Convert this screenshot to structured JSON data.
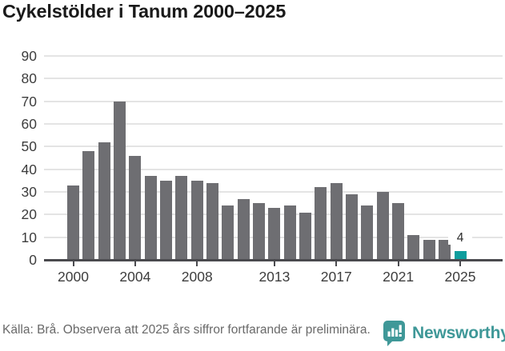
{
  "title": "Cykelstölder i Tanum 2000–2025",
  "footer": {
    "source_text": "Källa: Brå. Observera att 2025 års siffror fortfarande är preliminära.",
    "brand_name": "Newsworthy"
  },
  "colors": {
    "bar": "#6e6e72",
    "highlight": "#0d9d9d",
    "grid": "#e4e4e4",
    "axis": "#4a4a4e",
    "brand_teal": "#3f9898"
  },
  "chart_data": {
    "type": "bar",
    "title": "Cykelstölder i Tanum 2000–2025",
    "categories": [
      "2000",
      "2001",
      "2002",
      "2003",
      "2004",
      "2005",
      "2006",
      "2007",
      "2008",
      "2009",
      "2010",
      "2011",
      "2012",
      "2013",
      "2014",
      "2015",
      "2016",
      "2017",
      "2018",
      "2019",
      "2020",
      "2021",
      "2022",
      "2023",
      "2024",
      "2025"
    ],
    "values": [
      33,
      48,
      52,
      70,
      46,
      37,
      35,
      37,
      35,
      34,
      24,
      27,
      25,
      23,
      24,
      21,
      32,
      34,
      29,
      24,
      30,
      25,
      11,
      9,
      9,
      4
    ],
    "xlabel": "",
    "ylabel": "",
    "ylim": [
      0,
      90
    ],
    "y_ticks": [
      0,
      10,
      20,
      30,
      40,
      50,
      60,
      70,
      80,
      90
    ],
    "x_tick_indices": [
      0,
      4,
      8,
      13,
      17,
      21,
      25
    ],
    "x_tick_labels": [
      "2000",
      "2004",
      "2008",
      "2013",
      "2017",
      "2021",
      "2025"
    ],
    "grid": "horizontal",
    "legend": "none",
    "highlight_index": 25,
    "highlight_value_label": "4",
    "bar_color": "#6e6e72",
    "highlight_color": "#0d9d9d"
  }
}
